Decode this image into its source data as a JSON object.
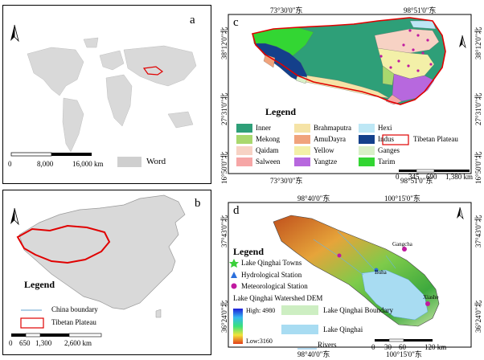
{
  "panel_a": {
    "letter": "a",
    "legend_label": "Word",
    "scale": {
      "t0": "0",
      "t1": "8,000",
      "t2": "16,000 km"
    }
  },
  "panel_b": {
    "letter": "b",
    "legend_title": "Legend",
    "legend_items": [
      "China boundary",
      "Tibetan Plateau"
    ],
    "scale": {
      "t0": "0",
      "t1": "650",
      "t2": "1,300",
      "t3": "2,600 km"
    }
  },
  "panel_c": {
    "letter": "c",
    "top_labels": [
      "73°30'0\"东",
      "98°51'0\"东"
    ],
    "bottom_labels": [
      "73°30'0\"东",
      "98°51'0\"东"
    ],
    "left_labels": [
      "38°12'0\"北",
      "27°31'0\"北",
      "16°50'0\"北"
    ],
    "right_labels": [
      "38°12'0\"北",
      "27°31'0\"北",
      "16°50'0\"北"
    ],
    "legend_title": "Legend",
    "legend_items": [
      {
        "label": "Inner",
        "color": "#2e9f78"
      },
      {
        "label": "Brahmaputra",
        "color": "#f5e3a6"
      },
      {
        "label": "Hexi",
        "color": "#bde7f5"
      },
      {
        "label": "Mekong",
        "color": "#a9d86e"
      },
      {
        "label": "AmuDayra",
        "color": "#f0a37c"
      },
      {
        "label": "Indus",
        "color": "#14408b"
      },
      {
        "label": "Qaidam",
        "color": "#f7d2c4"
      },
      {
        "label": "Yellow",
        "color": "#f3f0a8"
      },
      {
        "label": "Ganges",
        "color": "#d9f0c8"
      },
      {
        "label": "Salween",
        "color": "#f6a6a6"
      },
      {
        "label": "Yangtze",
        "color": "#b768de"
      },
      {
        "label": "Tarim",
        "color": "#33d633"
      }
    ],
    "tp_label": "Tibetan Plateau",
    "scale": {
      "t0": "0",
      "t1": "345",
      "t2": "690",
      "t3": "1,380 km"
    }
  },
  "panel_d": {
    "letter": "d",
    "top_labels": [
      "98°40'0\"东",
      "100°15'0\"东"
    ],
    "bottom_labels": [
      "98°40'0\"东",
      "100°15'0\"东"
    ],
    "left_labels": [
      "37°43'0\"北",
      "36°24'0\"北"
    ],
    "right_labels": [
      "37°43'0\"北",
      "36°24'0\"北"
    ],
    "legend_title": "Legend",
    "items": [
      "Lake Qinghai Towns",
      "Hydrological Station",
      "Meteorological Station"
    ],
    "dem_label": "Lake Qinghai  Watershed DEM",
    "high": "High: 4980",
    "low": "Low:3160",
    "boundary": "Lake Qinghai  Boundary",
    "lake": "Lake Qinghai",
    "rivers": "Rivers",
    "places": [
      "Gangcha",
      "Buha",
      "Xiashe"
    ],
    "scale": {
      "t0": "0",
      "t1": "30",
      "t2": "60",
      "t3": "120 km"
    }
  }
}
